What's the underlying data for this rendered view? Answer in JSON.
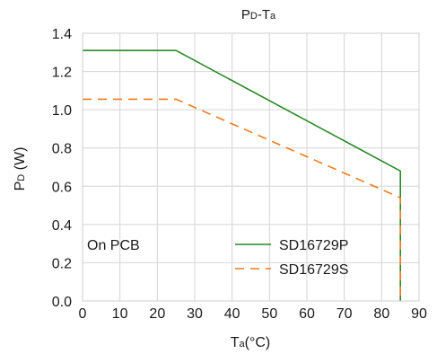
{
  "chart_data": {
    "type": "line",
    "title": {
      "main1": "P",
      "sub1": "D",
      "main2": "-T",
      "sub2": "a"
    },
    "xlabel": {
      "main": "T",
      "sub": "a",
      "rest": "(°C)"
    },
    "ylabel": {
      "main": "P",
      "sub": "D",
      "rest": " (W)"
    },
    "xlim": [
      0,
      90
    ],
    "ylim": [
      0,
      1.4
    ],
    "x_ticks": [
      "0",
      "10",
      "20",
      "30",
      "40",
      "50",
      "60",
      "70",
      "80",
      "90"
    ],
    "y_ticks": [
      "0.0",
      "0.2",
      "0.4",
      "0.6",
      "0.8",
      "1.0",
      "1.2",
      "1.4"
    ],
    "grid": true,
    "annotation": "On PCB",
    "legend_position": "bottom-right",
    "series": [
      {
        "name": "SD16729P",
        "color": "#2a8a2a",
        "dash": "solid",
        "points": [
          [
            0,
            1.31
          ],
          [
            25,
            1.31
          ],
          [
            85,
            0.68
          ],
          [
            85,
            0.0
          ]
        ]
      },
      {
        "name": "SD16729S",
        "color": "#f07a1e",
        "dash": "dashed",
        "points": [
          [
            0,
            1.055
          ],
          [
            25,
            1.055
          ],
          [
            85,
            0.54
          ],
          [
            85,
            0.0
          ]
        ]
      }
    ]
  }
}
